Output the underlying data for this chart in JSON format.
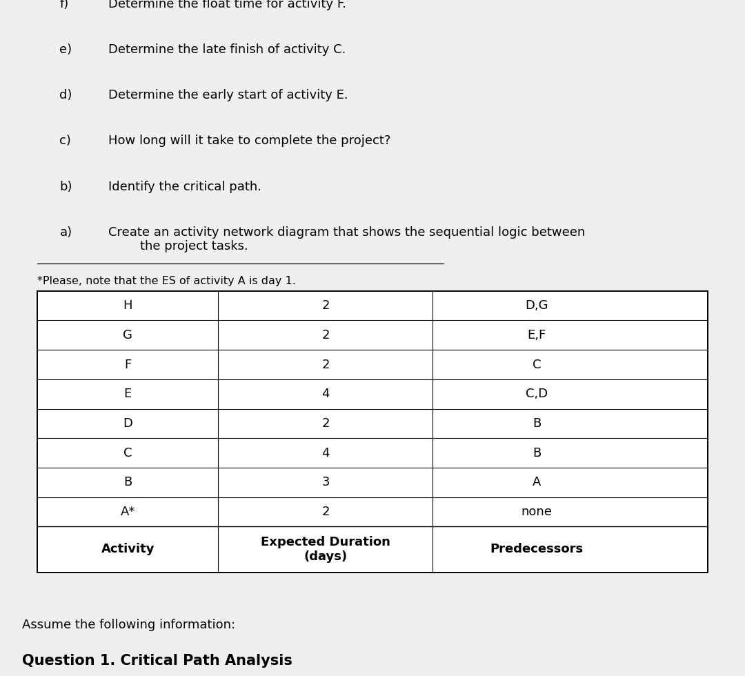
{
  "title": "Question 1. Critical Path Analysis",
  "subtitle": "Assume the following information:",
  "table_headers": [
    "Activity",
    "Expected Duration\n(days)",
    "Predecessors"
  ],
  "table_rows": [
    [
      "A*",
      "2",
      "none"
    ],
    [
      "B",
      "3",
      "A"
    ],
    [
      "C",
      "4",
      "B"
    ],
    [
      "D",
      "2",
      "B"
    ],
    [
      "E",
      "4",
      "C,D"
    ],
    [
      "F",
      "2",
      "C"
    ],
    [
      "G",
      "2",
      "E,F"
    ],
    [
      "H",
      "2",
      "D,G"
    ]
  ],
  "footnote": "*Please, note that the ES of activity A is day 1.",
  "question_items": [
    [
      "a)",
      "Create an activity network diagram that shows the sequential logic between\n        the project tasks."
    ],
    [
      "b)",
      "Identify the critical path."
    ],
    [
      "c)",
      "How long will it take to complete the project?"
    ],
    [
      "d)",
      "Determine the early start of activity E."
    ],
    [
      "e)",
      "Determine the late finish of activity C."
    ],
    [
      "f)",
      "Determine the float time for activity F."
    ]
  ],
  "bg_color": "#efefef",
  "table_bg": "#ffffff",
  "line_color": "#000000",
  "text_color": "#000000",
  "title_fontsize": 15,
  "subtitle_fontsize": 13,
  "table_fontsize": 13,
  "question_fontsize": 13
}
